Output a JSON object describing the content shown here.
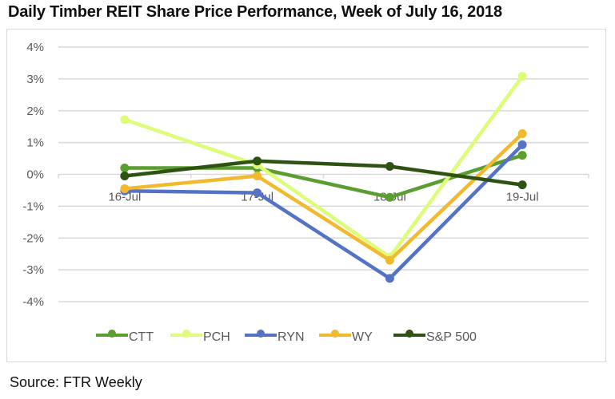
{
  "chart_data": {
    "type": "line",
    "title": "Daily Timber REIT Share Price Performance, Week of July 16, 2018",
    "xlabel": "",
    "ylabel": "",
    "categories": [
      "16-Jul",
      "17-Jul",
      "18-Jul",
      "19-Jul"
    ],
    "yticks": [
      4,
      3,
      2,
      1,
      0,
      -1,
      -2,
      -3,
      -4
    ],
    "ytick_labels": [
      "4%",
      "3%",
      "2%",
      "1%",
      "0%",
      "-1%",
      "-2%",
      "-3%",
      "-4%"
    ],
    "ylim": [
      -4,
      4
    ],
    "grid": true,
    "legend_position": "bottom",
    "series": [
      {
        "name": "CTT",
        "color": "#5a9e2f",
        "values": [
          0.2,
          0.2,
          -0.72,
          0.6
        ]
      },
      {
        "name": "PCH",
        "color": "#ddfc78",
        "values": [
          1.72,
          0.3,
          -2.6,
          3.08
        ]
      },
      {
        "name": "RYN",
        "color": "#5573c6",
        "values": [
          -0.52,
          -0.58,
          -3.27,
          0.93
        ]
      },
      {
        "name": "WY",
        "color": "#f2b92e",
        "values": [
          -0.45,
          -0.05,
          -2.7,
          1.28
        ]
      },
      {
        "name": "S&P 500",
        "color": "#2d5212",
        "values": [
          -0.05,
          0.42,
          0.25,
          -0.33
        ]
      }
    ]
  },
  "footer": {
    "source": "Source: FTR Weekly"
  }
}
